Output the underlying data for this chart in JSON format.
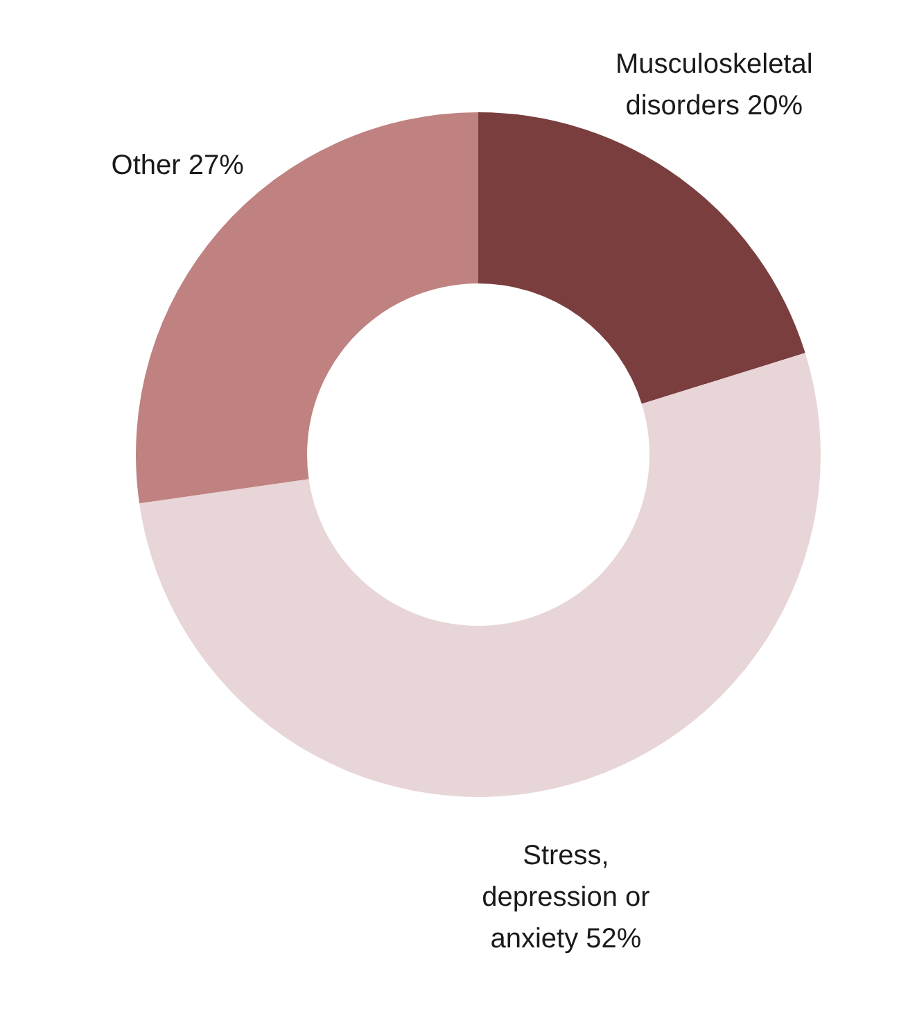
{
  "chart_data": {
    "type": "donut",
    "categories": [
      "Musculoskeletal disorders",
      "Stress, depression or anxiety",
      "Other"
    ],
    "values": [
      20,
      52,
      27
    ],
    "value_labels": [
      "20%",
      "52%",
      "27%"
    ],
    "colors": [
      "#7b3e3e",
      "#e8d5d7",
      "#bf8280"
    ],
    "legend": false
  }
}
